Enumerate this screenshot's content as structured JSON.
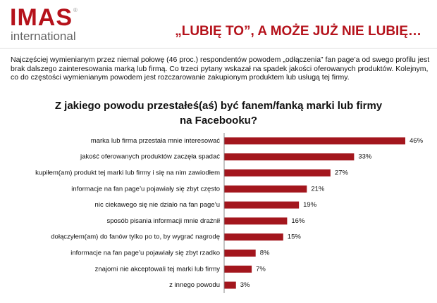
{
  "header": {
    "logo": "IMAS",
    "logo_sub": "international",
    "title": "„LUBIĘ TO”, A MOŻE JUŻ NIE LUBIĘ…"
  },
  "intro": "Najczęściej wymienianym przez niemal połowę (46 proc.) respondentów powodem „odłączenia” fan page’a od swego profilu jest brak dalszego zainteresowania marką lub firmą. Co trzeci pytany wskazał na spadek jakości oferowanych produktów. Kolejnym, co do częstości wymienianym powodem jest rozczarowanie zakupionym produktem lub usługą tej firmy.",
  "chart_data": {
    "type": "hbar",
    "title": "Z jakiego powodu przestałeś(aś) być fanem/fanką marki lub firmy na Facebooku?",
    "categories": [
      "marka lub firma przestała mnie interesować",
      "jakość oferowanych produktów zaczęła spadać",
      "kupiłem(am) produkt tej marki lub firmy i się na nim zawiodłem",
      "informacje na fan page’u pojawiały się zbyt często",
      "nic ciekawego się nie działo na fan page’u",
      "sposób pisania informacji mnie drażnił",
      "dołączyłem(am) do fanów tylko po to, by wygrać nagrodę",
      "informacje na fan page’u pojawiały się zbyt rzadko",
      "znajomi nie akceptowali tej marki lub firmy",
      "z innego powodu"
    ],
    "values": [
      46,
      33,
      27,
      21,
      19,
      16,
      15,
      8,
      7,
      3
    ],
    "value_labels": [
      "46%",
      "33%",
      "27%",
      "21%",
      "19%",
      "16%",
      "15%",
      "8%",
      "7%",
      "3%"
    ],
    "color": "#a3161d"
  }
}
